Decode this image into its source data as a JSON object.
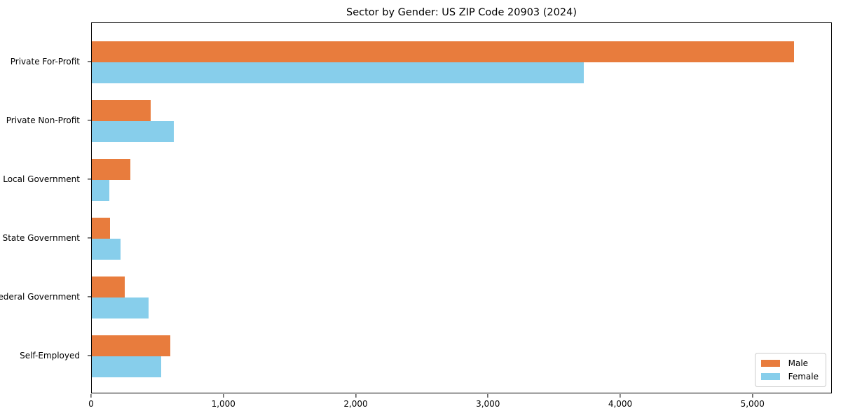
{
  "title": "Sector by Gender: US ZIP Code 20903 (2024)",
  "chart_data": {
    "type": "bar",
    "orientation": "horizontal",
    "title": "Sector by Gender: US ZIP Code 20903 (2024)",
    "categories": [
      "Private For-Profit",
      "Private Non-Profit",
      "Local Government",
      "State Government",
      "Federal Government",
      "Self-Employed"
    ],
    "series": [
      {
        "name": "Male",
        "color": "#e87c3d",
        "values": [
          5320,
          445,
          290,
          140,
          250,
          595
        ]
      },
      {
        "name": "Female",
        "color": "#87ceeb",
        "values": [
          3725,
          620,
          135,
          220,
          430,
          525
        ]
      }
    ],
    "xlabel": "",
    "ylabel": "",
    "xlim": [
      0,
      5600
    ],
    "xticks": [
      0,
      1000,
      2000,
      3000,
      4000,
      5000
    ],
    "xtick_labels": [
      "0",
      "1,000",
      "2,000",
      "3,000",
      "4,000",
      "5,000"
    ],
    "grid": false,
    "legend_position": "lower right"
  },
  "colors": {
    "male": "#e87c3d",
    "female": "#87ceeb",
    "axis": "#000000",
    "legend_border": "#cccccc",
    "background": "#ffffff"
  }
}
